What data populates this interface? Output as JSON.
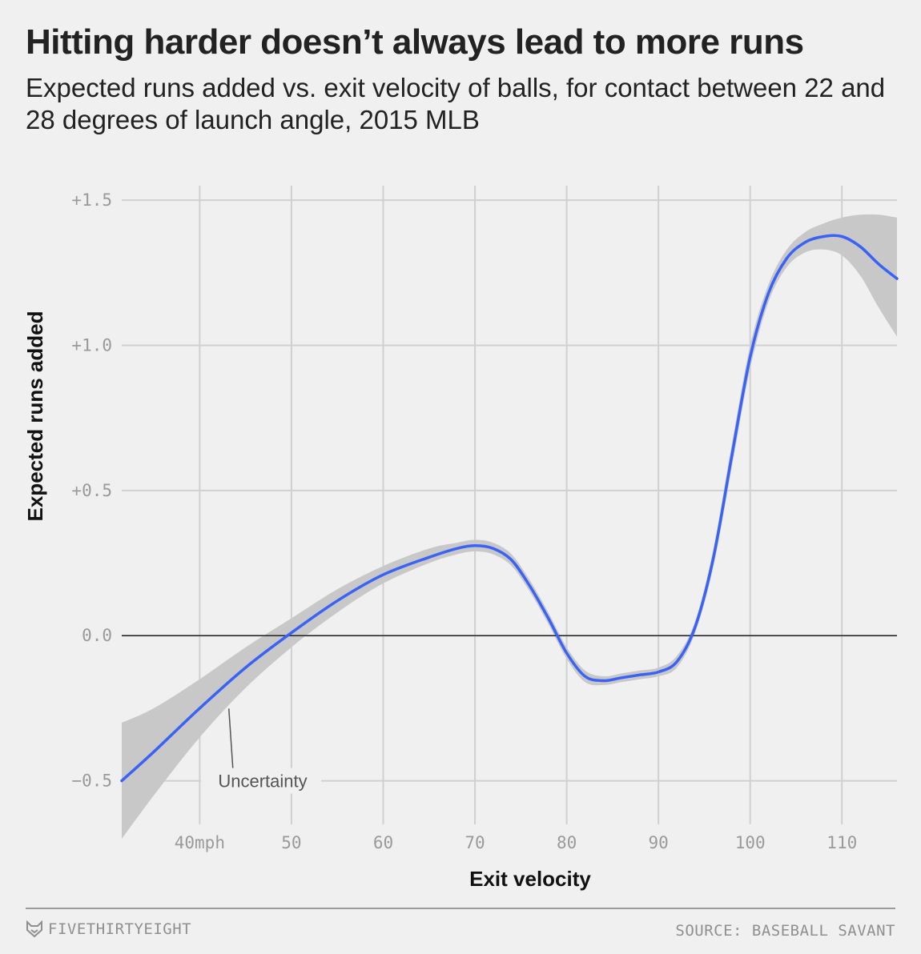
{
  "header": {
    "title": "Hitting harder doesn’t always lead to more runs",
    "subtitle": "Expected runs added vs. exit velocity of balls, for contact between 22 and 28 degrees of launch angle, 2015 MLB"
  },
  "chart_data": {
    "type": "line",
    "xlabel": "Exit velocity",
    "ylabel": "Expected runs added",
    "xlim": [
      31.5,
      116
    ],
    "ylim": [
      -0.65,
      1.55
    ],
    "x_ticks": [
      {
        "value": 40,
        "label": "40mph"
      },
      {
        "value": 50,
        "label": "50"
      },
      {
        "value": 60,
        "label": "60"
      },
      {
        "value": 70,
        "label": "70"
      },
      {
        "value": 80,
        "label": "80"
      },
      {
        "value": 90,
        "label": "90"
      },
      {
        "value": 100,
        "label": "100"
      },
      {
        "value": 110,
        "label": "110"
      }
    ],
    "y_ticks": [
      {
        "value": 1.5,
        "label": "+1.5"
      },
      {
        "value": 1.0,
        "label": "+1.0"
      },
      {
        "value": 0.5,
        "label": "+0.5"
      },
      {
        "value": 0.0,
        "label": "0.0"
      },
      {
        "value": -0.5,
        "label": "−0.5"
      }
    ],
    "zero_line": 0,
    "grid": true,
    "series": [
      {
        "color": "#3a63f5",
        "x": [
          31.5,
          35,
          40,
          45,
          50,
          55,
          60,
          65,
          68,
          70,
          72,
          74,
          76,
          78,
          80,
          82,
          84,
          86,
          88,
          90,
          92,
          94,
          96,
          98,
          100,
          102,
          104,
          106,
          108,
          110,
          112,
          114,
          116
        ],
        "y": [
          -0.5,
          -0.4,
          -0.25,
          -0.11,
          0.01,
          0.12,
          0.21,
          0.27,
          0.3,
          0.31,
          0.3,
          0.26,
          0.17,
          0.06,
          -0.06,
          -0.14,
          -0.155,
          -0.145,
          -0.135,
          -0.125,
          -0.09,
          0.03,
          0.27,
          0.62,
          0.96,
          1.18,
          1.3,
          1.355,
          1.375,
          1.375,
          1.34,
          1.28,
          1.23
        ],
        "lower": [
          -0.7,
          -0.55,
          -0.35,
          -0.18,
          -0.04,
          0.08,
          0.18,
          0.25,
          0.28,
          0.29,
          0.28,
          0.24,
          0.15,
          0.04,
          -0.08,
          -0.16,
          -0.17,
          -0.16,
          -0.15,
          -0.14,
          -0.11,
          0.01,
          0.24,
          0.58,
          0.92,
          1.15,
          1.27,
          1.32,
          1.33,
          1.31,
          1.24,
          1.13,
          1.03
        ],
        "upper": [
          -0.3,
          -0.25,
          -0.15,
          -0.04,
          0.06,
          0.16,
          0.24,
          0.3,
          0.32,
          0.33,
          0.32,
          0.28,
          0.19,
          0.08,
          -0.04,
          -0.12,
          -0.14,
          -0.13,
          -0.12,
          -0.11,
          -0.07,
          0.05,
          0.3,
          0.66,
          1.0,
          1.21,
          1.33,
          1.39,
          1.42,
          1.44,
          1.45,
          1.45,
          1.44
        ]
      }
    ],
    "annotations": [
      {
        "text": "Uncertainty",
        "x": 48,
        "y": -0.5,
        "target_x": 43,
        "target_y": -0.24
      }
    ]
  },
  "footer": {
    "brand": "FIVETHIRTYEIGHT",
    "source": "SOURCE: BASEBALL SAVANT"
  }
}
